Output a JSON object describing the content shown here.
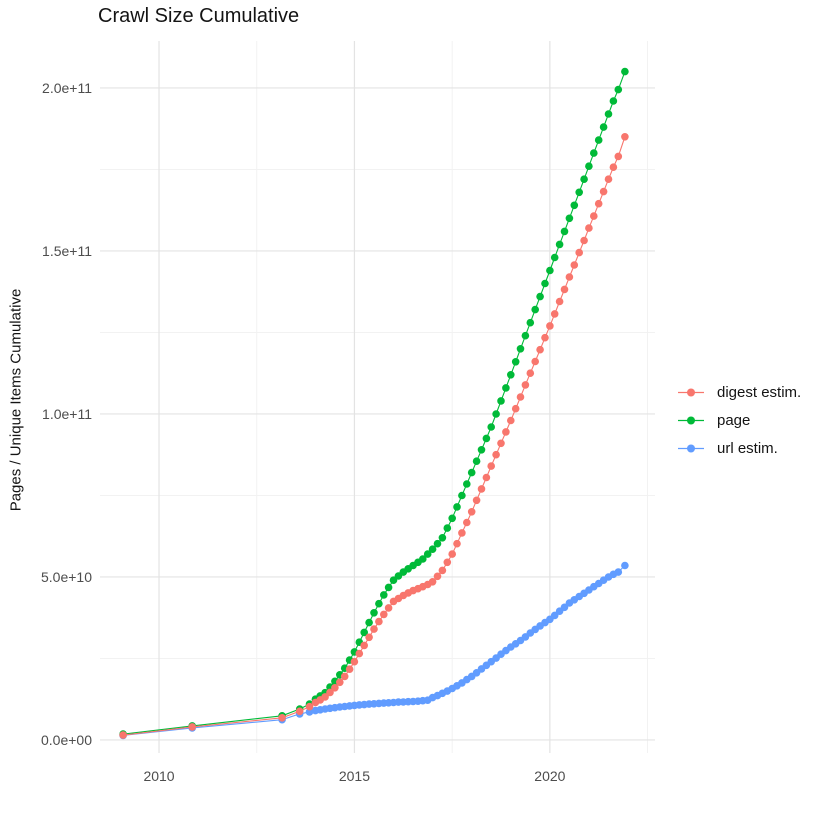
{
  "title": "Crawl Size Cumulative",
  "y_axis_label": "Pages / Unique Items Cumulative",
  "colors": {
    "digest": "#F8766D",
    "page": "#00BA38",
    "url": "#619CFF",
    "grid_major": "#E3E3E3",
    "grid_minor": "#F1F1F1",
    "tick_text": "#4D4D4D"
  },
  "chart_data": {
    "type": "line",
    "title": "Crawl Size Cumulative",
    "xlabel": "",
    "ylabel": "Pages / Unique Items Cumulative",
    "unit": "pages (values in billions, 1e9)",
    "grid": true,
    "legend_position": "right",
    "x_domain": [
      2008.49,
      2022.69
    ],
    "y_domain_e9": [
      -4,
      214.4
    ],
    "x_major_ticks": [
      {
        "value": 2010,
        "label": "2010"
      },
      {
        "value": 2015,
        "label": "2015"
      },
      {
        "value": 2020,
        "label": "2020"
      }
    ],
    "x_minor_ticks": [
      2012.5,
      2017.5,
      2022.5
    ],
    "y_major_ticks": [
      {
        "value_e9": 0,
        "label": "0.0e+00"
      },
      {
        "value_e9": 50,
        "label": "5.0e+10"
      },
      {
        "value_e9": 100,
        "label": "1.0e+11"
      },
      {
        "value_e9": 150,
        "label": "1.5e+11"
      },
      {
        "value_e9": 200,
        "label": "2.0e+11"
      }
    ],
    "y_minor_ticks_e9": [
      25,
      75,
      125,
      175
    ],
    "series": [
      {
        "name": "digest estim.",
        "color": "#F8766D",
        "points": [
          [
            2009.08,
            1.5
          ],
          [
            2010.85,
            4.0
          ],
          [
            2013.15,
            6.8
          ],
          [
            2013.6,
            8.8
          ],
          [
            2013.85,
            10.2
          ],
          [
            2014.0,
            11.5
          ],
          [
            2014.125,
            12.3
          ],
          [
            2014.25,
            13.2
          ],
          [
            2014.375,
            14.6
          ],
          [
            2014.5,
            16.0
          ],
          [
            2014.625,
            17.7
          ],
          [
            2014.75,
            19.5
          ],
          [
            2014.875,
            21.7
          ],
          [
            2015.0,
            24.0
          ],
          [
            2015.125,
            26.5
          ],
          [
            2015.25,
            29.0
          ],
          [
            2015.375,
            31.5
          ],
          [
            2015.5,
            34.0
          ],
          [
            2015.625,
            36.3
          ],
          [
            2015.75,
            38.5
          ],
          [
            2015.875,
            40.5
          ],
          [
            2016.0,
            42.5
          ],
          [
            2016.125,
            43.4
          ],
          [
            2016.25,
            44.3
          ],
          [
            2016.375,
            45.1
          ],
          [
            2016.5,
            45.8
          ],
          [
            2016.625,
            46.4
          ],
          [
            2016.75,
            47.0
          ],
          [
            2016.875,
            47.7
          ],
          [
            2017.0,
            48.5
          ],
          [
            2017.125,
            50.2
          ],
          [
            2017.25,
            52.0
          ],
          [
            2017.375,
            54.5
          ],
          [
            2017.5,
            57.0
          ],
          [
            2017.625,
            60.2
          ],
          [
            2017.75,
            63.5
          ],
          [
            2017.875,
            66.7
          ],
          [
            2018.0,
            70.0
          ],
          [
            2018.125,
            73.5
          ],
          [
            2018.25,
            77.0
          ],
          [
            2018.375,
            80.5
          ],
          [
            2018.5,
            84.0
          ],
          [
            2018.625,
            87.5
          ],
          [
            2018.75,
            91.0
          ],
          [
            2018.875,
            94.5
          ],
          [
            2019.0,
            98.0
          ],
          [
            2019.125,
            101.6
          ],
          [
            2019.25,
            105.2
          ],
          [
            2019.375,
            108.9
          ],
          [
            2019.5,
            112.5
          ],
          [
            2019.625,
            116.1
          ],
          [
            2019.75,
            119.7
          ],
          [
            2019.875,
            123.4
          ],
          [
            2020.0,
            127.0
          ],
          [
            2020.125,
            130.7
          ],
          [
            2020.25,
            134.5
          ],
          [
            2020.375,
            138.2
          ],
          [
            2020.5,
            142.0
          ],
          [
            2020.625,
            145.7
          ],
          [
            2020.75,
            149.5
          ],
          [
            2020.875,
            153.2
          ],
          [
            2021.0,
            157.0
          ],
          [
            2021.125,
            160.7
          ],
          [
            2021.25,
            164.5
          ],
          [
            2021.375,
            168.2
          ],
          [
            2021.5,
            172.0
          ],
          [
            2021.625,
            175.7
          ],
          [
            2021.75,
            179.0
          ],
          [
            2021.92,
            185.0
          ]
        ]
      },
      {
        "name": "page",
        "color": "#00BA38",
        "points": [
          [
            2009.08,
            1.8
          ],
          [
            2010.85,
            4.3
          ],
          [
            2013.15,
            7.4
          ],
          [
            2013.6,
            9.5
          ],
          [
            2013.85,
            11.0
          ],
          [
            2014.0,
            12.5
          ],
          [
            2014.125,
            13.5
          ],
          [
            2014.25,
            14.5
          ],
          [
            2014.375,
            16.2
          ],
          [
            2014.5,
            18.0
          ],
          [
            2014.625,
            20.0
          ],
          [
            2014.75,
            22.0
          ],
          [
            2014.875,
            24.5
          ],
          [
            2015.0,
            27.0
          ],
          [
            2015.125,
            30.0
          ],
          [
            2015.25,
            33.0
          ],
          [
            2015.375,
            36.0
          ],
          [
            2015.5,
            39.0
          ],
          [
            2015.625,
            41.8
          ],
          [
            2015.75,
            44.5
          ],
          [
            2015.875,
            46.8
          ],
          [
            2016.0,
            49.0
          ],
          [
            2016.125,
            50.3
          ],
          [
            2016.25,
            51.5
          ],
          [
            2016.375,
            52.5
          ],
          [
            2016.5,
            53.5
          ],
          [
            2016.625,
            54.5
          ],
          [
            2016.75,
            55.5
          ],
          [
            2016.875,
            57.0
          ],
          [
            2017.0,
            58.5
          ],
          [
            2017.125,
            60.2
          ],
          [
            2017.25,
            62.0
          ],
          [
            2017.375,
            65.0
          ],
          [
            2017.5,
            68.0
          ],
          [
            2017.625,
            71.5
          ],
          [
            2017.75,
            75.0
          ],
          [
            2017.875,
            78.5
          ],
          [
            2018.0,
            82.0
          ],
          [
            2018.125,
            85.5
          ],
          [
            2018.25,
            89.0
          ],
          [
            2018.375,
            92.5
          ],
          [
            2018.5,
            96.0
          ],
          [
            2018.625,
            100.0
          ],
          [
            2018.75,
            104.0
          ],
          [
            2018.875,
            108.0
          ],
          [
            2019.0,
            112.0
          ],
          [
            2019.125,
            116.0
          ],
          [
            2019.25,
            120.0
          ],
          [
            2019.375,
            124.0
          ],
          [
            2019.5,
            128.0
          ],
          [
            2019.625,
            132.0
          ],
          [
            2019.75,
            136.0
          ],
          [
            2019.875,
            140.0
          ],
          [
            2020.0,
            144.0
          ],
          [
            2020.125,
            148.0
          ],
          [
            2020.25,
            152.0
          ],
          [
            2020.375,
            156.0
          ],
          [
            2020.5,
            160.0
          ],
          [
            2020.625,
            164.0
          ],
          [
            2020.75,
            168.0
          ],
          [
            2020.875,
            172.0
          ],
          [
            2021.0,
            176.0
          ],
          [
            2021.125,
            180.0
          ],
          [
            2021.25,
            184.0
          ],
          [
            2021.375,
            188.0
          ],
          [
            2021.5,
            192.0
          ],
          [
            2021.625,
            196.0
          ],
          [
            2021.75,
            199.5
          ],
          [
            2021.92,
            205.0
          ]
        ]
      },
      {
        "name": "url estim.",
        "color": "#619CFF",
        "points": [
          [
            2009.08,
            1.4
          ],
          [
            2010.85,
            3.7
          ],
          [
            2013.15,
            6.2
          ],
          [
            2013.6,
            8.0
          ],
          [
            2013.85,
            8.6
          ],
          [
            2014.0,
            9.0
          ],
          [
            2014.125,
            9.25
          ],
          [
            2014.25,
            9.5
          ],
          [
            2014.375,
            9.7
          ],
          [
            2014.5,
            9.9
          ],
          [
            2014.625,
            10.1
          ],
          [
            2014.75,
            10.25
          ],
          [
            2014.875,
            10.45
          ],
          [
            2015.0,
            10.6
          ],
          [
            2015.125,
            10.75
          ],
          [
            2015.25,
            10.85
          ],
          [
            2015.375,
            11.0
          ],
          [
            2015.5,
            11.1
          ],
          [
            2015.625,
            11.2
          ],
          [
            2015.75,
            11.3
          ],
          [
            2015.875,
            11.4
          ],
          [
            2016.0,
            11.5
          ],
          [
            2016.125,
            11.6
          ],
          [
            2016.25,
            11.65
          ],
          [
            2016.375,
            11.75
          ],
          [
            2016.5,
            11.8
          ],
          [
            2016.625,
            11.9
          ],
          [
            2016.75,
            12.05
          ],
          [
            2016.875,
            12.2
          ],
          [
            2017.0,
            13.0
          ],
          [
            2017.125,
            13.6
          ],
          [
            2017.25,
            14.3
          ],
          [
            2017.375,
            15.0
          ],
          [
            2017.5,
            15.8
          ],
          [
            2017.625,
            16.6
          ],
          [
            2017.75,
            17.5
          ],
          [
            2017.875,
            18.5
          ],
          [
            2018.0,
            19.5
          ],
          [
            2018.125,
            20.6
          ],
          [
            2018.25,
            21.8
          ],
          [
            2018.375,
            22.9
          ],
          [
            2018.5,
            24.0
          ],
          [
            2018.625,
            25.1
          ],
          [
            2018.75,
            26.3
          ],
          [
            2018.875,
            27.4
          ],
          [
            2019.0,
            28.5
          ],
          [
            2019.125,
            29.5
          ],
          [
            2019.25,
            30.5
          ],
          [
            2019.375,
            31.6
          ],
          [
            2019.5,
            32.8
          ],
          [
            2019.625,
            33.9
          ],
          [
            2019.75,
            35.0
          ],
          [
            2019.875,
            36.0
          ],
          [
            2020.0,
            37.0
          ],
          [
            2020.125,
            38.2
          ],
          [
            2020.25,
            39.5
          ],
          [
            2020.375,
            40.7
          ],
          [
            2020.5,
            42.0
          ],
          [
            2020.625,
            43.0
          ],
          [
            2020.75,
            44.0
          ],
          [
            2020.875,
            45.0
          ],
          [
            2021.0,
            46.0
          ],
          [
            2021.125,
            47.0
          ],
          [
            2021.25,
            48.0
          ],
          [
            2021.375,
            49.0
          ],
          [
            2021.5,
            50.0
          ],
          [
            2021.625,
            50.8
          ],
          [
            2021.75,
            51.5
          ],
          [
            2021.92,
            53.5
          ]
        ]
      }
    ]
  },
  "legend": {
    "items": [
      {
        "label": "digest estim."
      },
      {
        "label": "page"
      },
      {
        "label": "url estim."
      }
    ]
  }
}
